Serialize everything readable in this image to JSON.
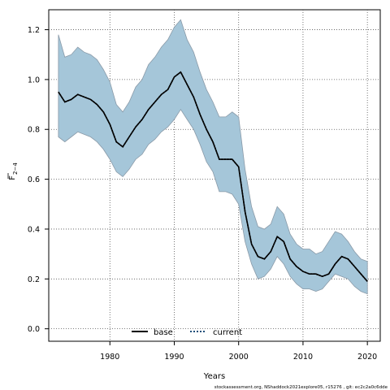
{
  "chart_data": {
    "type": "line",
    "xlabel": "Years",
    "ylabel_main": "F",
    "ylabel_sub": "2−4",
    "xlim": [
      1970.5,
      2022
    ],
    "ylim": [
      -0.05,
      1.28
    ],
    "xticks": [
      1980,
      1990,
      2000,
      2010,
      2020
    ],
    "yticks": [
      0.0,
      0.2,
      0.4,
      0.6,
      0.8,
      1.0,
      1.2
    ],
    "xtick_labels": [
      "1980",
      "1990",
      "2000",
      "2010",
      "2020"
    ],
    "ytick_labels": [
      "0.0",
      "0.2",
      "0.4",
      "0.6",
      "0.8",
      "1.0",
      "1.2"
    ],
    "grid": true,
    "legend_position": "bottom-center",
    "colors": {
      "band": "#a5c6d9",
      "band_edge": "#8a9aa8",
      "line": "#000000",
      "current_line": "#1f4e79"
    },
    "x": [
      1972,
      1973,
      1974,
      1975,
      1976,
      1977,
      1978,
      1979,
      1980,
      1981,
      1982,
      1983,
      1984,
      1985,
      1986,
      1987,
      1988,
      1989,
      1990,
      1991,
      1992,
      1993,
      1994,
      1995,
      1996,
      1997,
      1998,
      1999,
      2000,
      2001,
      2002,
      2003,
      2004,
      2005,
      2006,
      2007,
      2008,
      2009,
      2010,
      2011,
      2012,
      2013,
      2014,
      2015,
      2016,
      2017,
      2018,
      2019,
      2020
    ],
    "series": [
      {
        "name": "base",
        "values": [
          0.95,
          0.91,
          0.92,
          0.94,
          0.93,
          0.92,
          0.9,
          0.87,
          0.82,
          0.75,
          0.73,
          0.77,
          0.81,
          0.84,
          0.88,
          0.91,
          0.94,
          0.96,
          1.01,
          1.03,
          0.98,
          0.93,
          0.86,
          0.8,
          0.75,
          0.68,
          0.68,
          0.68,
          0.65,
          0.47,
          0.34,
          0.29,
          0.28,
          0.31,
          0.37,
          0.35,
          0.28,
          0.25,
          0.23,
          0.22,
          0.22,
          0.21,
          0.22,
          0.26,
          0.29,
          0.28,
          0.25,
          0.22,
          0.19
        ]
      },
      {
        "name": "current",
        "values": [
          0.95,
          0.91,
          0.92,
          0.94,
          0.93,
          0.92,
          0.9,
          0.87,
          0.82,
          0.75,
          0.73,
          0.77,
          0.81,
          0.84,
          0.88,
          0.91,
          0.94,
          0.96,
          1.01,
          1.03,
          0.98,
          0.93,
          0.86,
          0.8,
          0.75,
          0.68,
          0.68,
          0.68,
          0.65,
          0.47,
          0.34,
          0.29,
          0.28,
          0.31,
          0.37,
          0.35,
          0.28,
          0.25,
          0.23,
          0.22,
          0.22,
          0.21,
          0.22,
          0.26,
          0.29,
          0.28,
          0.25,
          0.22,
          0.19
        ]
      }
    ],
    "band_upper": [
      1.18,
      1.09,
      1.1,
      1.13,
      1.11,
      1.1,
      1.08,
      1.04,
      0.99,
      0.9,
      0.87,
      0.91,
      0.97,
      1.0,
      1.06,
      1.09,
      1.13,
      1.16,
      1.21,
      1.24,
      1.16,
      1.11,
      1.03,
      0.96,
      0.91,
      0.85,
      0.85,
      0.87,
      0.85,
      0.64,
      0.49,
      0.41,
      0.4,
      0.42,
      0.49,
      0.46,
      0.38,
      0.34,
      0.32,
      0.32,
      0.3,
      0.31,
      0.35,
      0.39,
      0.38,
      0.35,
      0.31,
      0.28,
      0.27
    ],
    "band_lower": [
      0.77,
      0.75,
      0.77,
      0.79,
      0.78,
      0.77,
      0.75,
      0.72,
      0.68,
      0.63,
      0.61,
      0.64,
      0.68,
      0.7,
      0.74,
      0.76,
      0.79,
      0.81,
      0.84,
      0.88,
      0.84,
      0.8,
      0.74,
      0.67,
      0.63,
      0.55,
      0.55,
      0.54,
      0.5,
      0.35,
      0.26,
      0.2,
      0.21,
      0.24,
      0.29,
      0.26,
      0.21,
      0.18,
      0.16,
      0.16,
      0.15,
      0.16,
      0.19,
      0.22,
      0.21,
      0.2,
      0.17,
      0.15,
      0.14
    ]
  },
  "legend": {
    "base_label": "base",
    "current_label": "current"
  },
  "footer": "stockassessment.org, NShaddock2021explore05, r15276 , git: ec2c2a0c6dde"
}
